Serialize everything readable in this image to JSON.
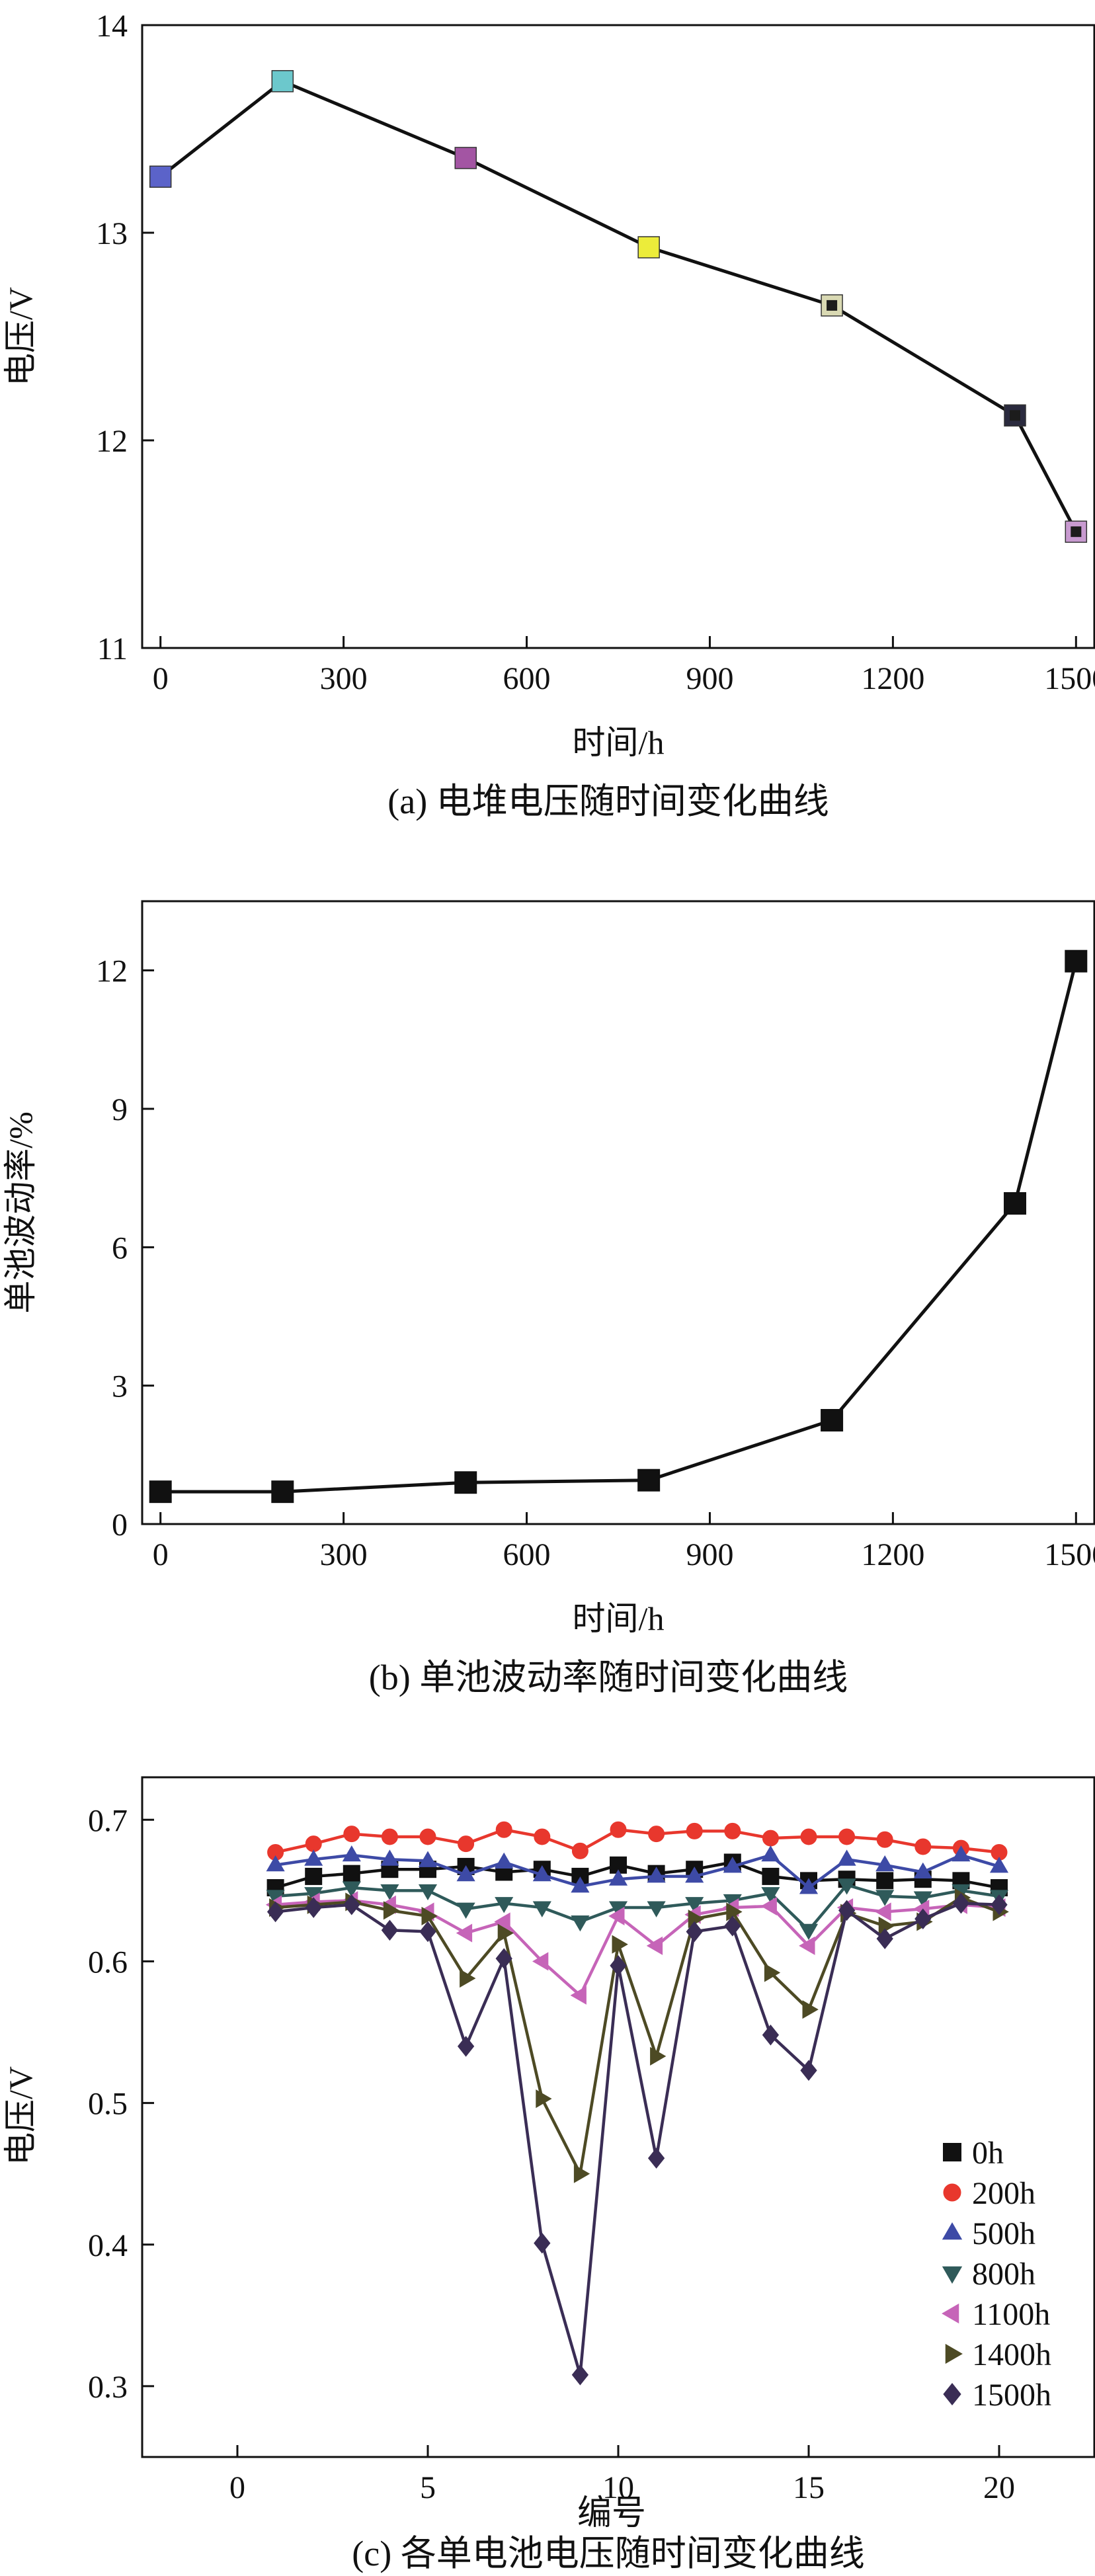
{
  "chart_data": [
    {
      "type": "line",
      "caption": "(a) 电堆电压随时间变化曲线",
      "xlabel": "时间/h",
      "ylabel": "电压/V",
      "xlim": [
        -30,
        1530
      ],
      "ylim": [
        11,
        14
      ],
      "xticks": [
        0,
        300,
        600,
        900,
        1200,
        1500
      ],
      "yticks": [
        11,
        12,
        13,
        14
      ],
      "x": [
        0,
        200,
        500,
        800,
        1100,
        1400,
        1500
      ],
      "values": [
        13.27,
        13.73,
        13.36,
        12.93,
        12.65,
        12.12,
        11.56
      ],
      "marker_colors": [
        "#5b63c9",
        "#6cc8cc",
        "#a355a3",
        "#ecec3a",
        "#d9d9b3",
        "#2a2a3e",
        "#c89ad0"
      ],
      "marker_inner_colors": [
        "#5b63c9",
        "#6cc8cc",
        "#a355a3",
        "#ecec3a",
        "#1c1c1c",
        "#1c1c1c",
        "#1c1c1c"
      ],
      "grid": false
    },
    {
      "type": "line",
      "caption": "(b) 单池波动率随时间变化曲线",
      "xlabel": "时间/h",
      "ylabel": "单池波动率/%",
      "xlim": [
        -30,
        1530
      ],
      "ylim": [
        0,
        13.5
      ],
      "xticks": [
        0,
        300,
        600,
        900,
        1200,
        1500
      ],
      "yticks": [
        0,
        3,
        6,
        9,
        12
      ],
      "x": [
        0,
        200,
        500,
        800,
        1100,
        1400,
        1500
      ],
      "values": [
        0.7,
        0.7,
        0.9,
        0.95,
        2.25,
        6.95,
        12.2
      ],
      "grid": false
    },
    {
      "type": "line",
      "caption": "(c) 各单电池电压随时间变化曲线",
      "xlabel": "编号",
      "ylabel": "电压/V",
      "xlim": [
        -2.5,
        22.5
      ],
      "ylim": [
        0.25,
        0.73
      ],
      "xticks": [
        0,
        5,
        10,
        15,
        20
      ],
      "yticks": [
        0.3,
        0.4,
        0.5,
        0.6,
        0.7
      ],
      "x": [
        1,
        2,
        3,
        4,
        5,
        6,
        7,
        8,
        9,
        10,
        11,
        12,
        13,
        14,
        15,
        16,
        17,
        18,
        19,
        20
      ],
      "legend_position": "lower-right",
      "grid": false,
      "series": [
        {
          "name": "0h",
          "color": "#111111",
          "marker": "square",
          "values": [
            0.652,
            0.66,
            0.662,
            0.665,
            0.665,
            0.667,
            0.663,
            0.665,
            0.66,
            0.668,
            0.662,
            0.665,
            0.67,
            0.66,
            0.657,
            0.658,
            0.657,
            0.658,
            0.657,
            0.652
          ]
        },
        {
          "name": "200h",
          "color": "#e8372d",
          "marker": "circle",
          "values": [
            0.677,
            0.683,
            0.69,
            0.688,
            0.688,
            0.683,
            0.693,
            0.688,
            0.678,
            0.693,
            0.69,
            0.692,
            0.692,
            0.687,
            0.688,
            0.688,
            0.686,
            0.681,
            0.68,
            0.677
          ]
        },
        {
          "name": "500h",
          "color": "#3d4aa6",
          "marker": "triangle-up",
          "values": [
            0.668,
            0.672,
            0.675,
            0.672,
            0.671,
            0.661,
            0.67,
            0.661,
            0.653,
            0.658,
            0.66,
            0.66,
            0.667,
            0.675,
            0.652,
            0.672,
            0.668,
            0.663,
            0.675,
            0.667
          ]
        },
        {
          "name": "800h",
          "color": "#2f5a5a",
          "marker": "triangle-down",
          "values": [
            0.646,
            0.648,
            0.652,
            0.65,
            0.65,
            0.637,
            0.641,
            0.638,
            0.628,
            0.638,
            0.638,
            0.641,
            0.643,
            0.648,
            0.622,
            0.654,
            0.646,
            0.645,
            0.65,
            0.646
          ]
        },
        {
          "name": "1100h",
          "color": "#c664b8",
          "marker": "triangle-left",
          "values": [
            0.64,
            0.642,
            0.643,
            0.64,
            0.635,
            0.62,
            0.628,
            0.6,
            0.576,
            0.632,
            0.611,
            0.633,
            0.638,
            0.639,
            0.611,
            0.638,
            0.635,
            0.637,
            0.64,
            0.638
          ]
        },
        {
          "name": "1400h",
          "color": "#4d4a24",
          "marker": "triangle-right",
          "values": [
            0.638,
            0.64,
            0.642,
            0.636,
            0.632,
            0.588,
            0.62,
            0.503,
            0.45,
            0.612,
            0.533,
            0.63,
            0.635,
            0.592,
            0.566,
            0.634,
            0.625,
            0.628,
            0.645,
            0.635
          ]
        },
        {
          "name": "1500h",
          "color": "#3a2d55",
          "marker": "diamond",
          "values": [
            0.635,
            0.638,
            0.64,
            0.622,
            0.621,
            0.54,
            0.602,
            0.401,
            0.308,
            0.597,
            0.461,
            0.621,
            0.625,
            0.548,
            0.523,
            0.636,
            0.616,
            0.63,
            0.641,
            0.64
          ]
        }
      ]
    }
  ]
}
